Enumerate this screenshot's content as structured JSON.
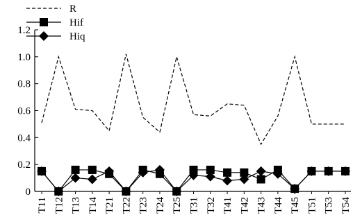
{
  "chart_data": {
    "type": "line",
    "categories": [
      "T11",
      "T12",
      "T13",
      "T14",
      "T21",
      "T22",
      "T23",
      "T24",
      "T25",
      "T31",
      "T32",
      "T41",
      "T42",
      "T43",
      "T44",
      "T45",
      "T51",
      "T53",
      "T54"
    ],
    "series": [
      {
        "name": "R",
        "color": "#000000",
        "dash": "dashed",
        "marker": "none",
        "values": [
          0.51,
          1.0,
          0.61,
          0.6,
          0.45,
          1.02,
          0.55,
          0.44,
          1.0,
          0.57,
          0.56,
          0.65,
          0.64,
          0.35,
          0.56,
          1.0,
          0.5,
          0.5,
          0.5
        ]
      },
      {
        "name": "Hif",
        "color": "#000000",
        "dash": "solid",
        "marker": "square",
        "values": [
          0.15,
          0,
          0.16,
          0.16,
          0.13,
          0,
          0.16,
          0.13,
          0,
          0.16,
          0.16,
          0.14,
          0.14,
          0.09,
          0.16,
          0.02,
          0.15,
          0.15,
          0.15
        ]
      },
      {
        "name": "Hiq",
        "color": "#000000",
        "dash": "solid",
        "marker": "diamond",
        "values": [
          0.15,
          0,
          0.1,
          0.09,
          0.15,
          0,
          0.14,
          0.16,
          0,
          0.12,
          0.11,
          0.08,
          0.09,
          0.15,
          0.13,
          0.02,
          0.15,
          0.15,
          0.15
        ]
      }
    ],
    "ylim": [
      0,
      1.2
    ],
    "yticks": [
      0,
      0.2,
      0.4,
      0.6,
      0.8,
      {
        "value": 1,
        "label": "1.0"
      },
      1.2
    ],
    "grid": false,
    "legend": "upper left"
  }
}
